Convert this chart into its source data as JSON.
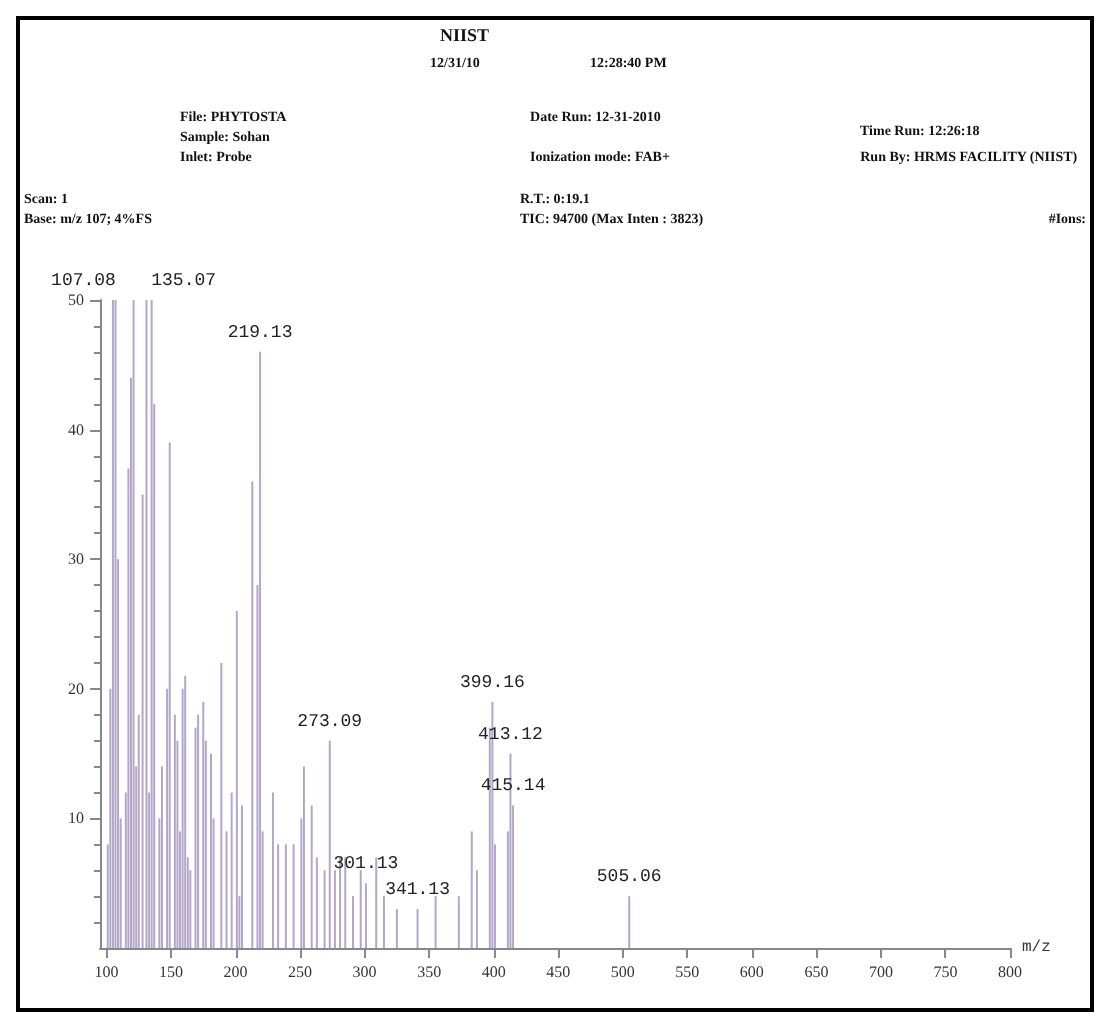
{
  "chart_data": {
    "type": "bar",
    "title": "NIIST",
    "xlabel": "m/z",
    "annotations": [
      "12/31/10",
      "12:28:40 PM",
      "File: PHYTOSTA",
      "Sample: Sohan",
      "Inlet: Probe",
      "Date Run: 12-31-2010",
      "Ionization mode: FAB+",
      "Time Run: 12:26:18",
      "Run By: HRMS FACILITY (NIIST)",
      "Scan: 1",
      "Base: m/z 107; 4%FS",
      "R.T.: 0:19.1",
      "TIC: 94700 (Max Inten : 3823)",
      "#Ions:",
      {
        "text": "107.08",
        "x": 107,
        "y": 50
      },
      {
        "text": "135.07",
        "x": 135,
        "y": 50
      },
      {
        "text": "219.13",
        "x": 219,
        "y": 46
      },
      {
        "text": "273.09",
        "x": 273,
        "y": 16
      },
      {
        "text": "301.13",
        "x": 301,
        "y": 5
      },
      {
        "text": "341.13",
        "x": 341,
        "y": 3
      },
      {
        "text": "399.16",
        "x": 399,
        "y": 19
      },
      {
        "text": "413.12",
        "x": 413,
        "y": 15
      },
      {
        "text": "415.14",
        "x": 415,
        "y": 11
      },
      {
        "text": "505.06",
        "x": 505,
        "y": 4
      }
    ],
    "x": [
      101,
      103,
      105,
      107,
      109,
      111,
      115,
      117,
      119,
      121,
      123,
      125,
      128,
      131,
      133,
      135,
      137,
      141,
      143,
      147,
      149,
      153,
      155,
      157,
      159,
      161,
      163,
      165,
      169,
      171,
      175,
      177,
      181,
      183,
      189,
      193,
      197,
      201,
      203,
      205,
      213,
      217,
      219,
      221,
      229,
      233,
      239,
      245,
      251,
      253,
      259,
      263,
      269,
      273,
      277,
      281,
      285,
      291,
      297,
      301,
      309,
      315,
      325,
      341,
      355,
      373,
      383,
      387,
      397,
      399,
      401,
      411,
      413,
      415,
      505
    ],
    "values": [
      8,
      20,
      50,
      50,
      30,
      10,
      12,
      37,
      44,
      50,
      14,
      18,
      35,
      50,
      12,
      50,
      42,
      10,
      14,
      20,
      39,
      18,
      16,
      9,
      20,
      21,
      7,
      6,
      17,
      18,
      19,
      16,
      15,
      10,
      22,
      9,
      12,
      26,
      4,
      11,
      36,
      28,
      46,
      9,
      12,
      8,
      8,
      8,
      10,
      14,
      11,
      7,
      6,
      16,
      6,
      7,
      7,
      4,
      6,
      5,
      7,
      4,
      3,
      3,
      4,
      4,
      9,
      6,
      17,
      19,
      8,
      9,
      15,
      11,
      4
    ],
    "color": "#b3a6c9",
    "xlim": [
      95,
      800
    ],
    "xticks": [
      100,
      150,
      200,
      250,
      300,
      350,
      400,
      450,
      500,
      550,
      600,
      650,
      700,
      750,
      800
    ],
    "ylim": [
      0,
      50
    ],
    "yticks": [
      10,
      20,
      30,
      40,
      50
    ]
  }
}
